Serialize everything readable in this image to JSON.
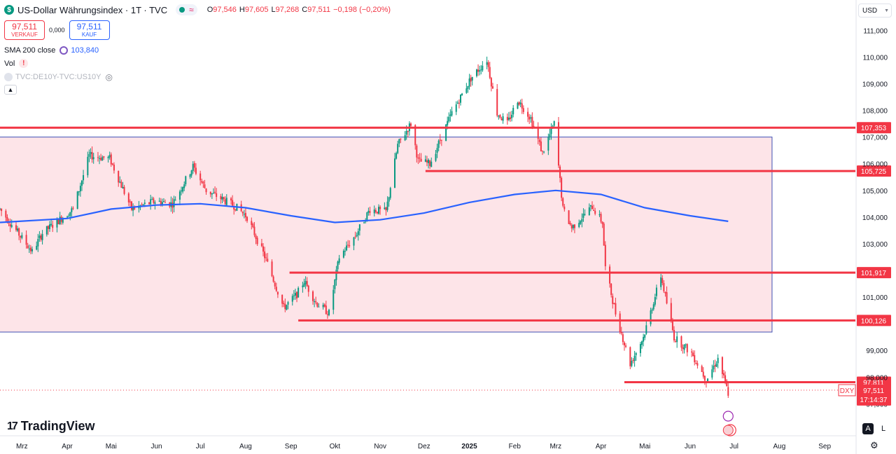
{
  "header": {
    "symbol_icon": "dollar-sign-icon",
    "title": "US-Dollar Währungsindex · 1T · TVC",
    "status_icon": "market-status-icon",
    "wave": "≈",
    "ohlc": [
      {
        "k": "O",
        "v": "97,546"
      },
      {
        "k": "H",
        "v": "97,605"
      },
      {
        "k": "L",
        "v": "97,268"
      },
      {
        "k": "C",
        "v": "97,511"
      },
      {
        "k": "",
        "v": "−0,198 (−0,20%)"
      }
    ]
  },
  "trade": {
    "sell_price": "97,511",
    "sell_label": "VERKAUF",
    "spread": "0,000",
    "buy_price": "97,511",
    "buy_label": "KAUF"
  },
  "indicators": {
    "sma_label": "SMA 200 close",
    "sma_value": "103,840",
    "vol_label": "Vol",
    "vol_warning": "!",
    "compare_label": "TVC:DE10Y-TVC:US10Y"
  },
  "currency": "USD",
  "brand": "TradingView",
  "scale_buttons": [
    "A",
    "L"
  ],
  "chart_data": {
    "type": "candlestick",
    "ylim": [
      96.8,
      111.35
    ],
    "y_ticks": [
      97,
      98,
      99,
      101,
      103,
      104,
      105,
      106,
      107,
      108,
      109,
      110,
      111
    ],
    "y_tick_labels": [
      "97,000",
      "98,000",
      "99,000",
      "101,000",
      "103,000",
      "104,000",
      "105,000",
      "106,000",
      "107,000",
      "108,000",
      "109,000",
      "110,000",
      "111,000"
    ],
    "x_labels": [
      "Mrz",
      "Apr",
      "Mai",
      "Jun",
      "Jul",
      "Aug",
      "Sep",
      "Okt",
      "Nov",
      "Dez",
      "2025",
      "Feb",
      "Mrz",
      "Apr",
      "Mai",
      "Jun",
      "Jul",
      "Aug",
      "Sep"
    ],
    "x_start": "2024-02-15",
    "x_end": "2025-09-22",
    "x_label_dates": [
      "2024-03-01",
      "2024-04-01",
      "2024-05-01",
      "2024-06-01",
      "2024-07-01",
      "2024-08-01",
      "2024-09-01",
      "2024-10-01",
      "2024-11-01",
      "2024-12-01",
      "2025-01-01",
      "2025-02-01",
      "2025-03-01",
      "2025-04-01",
      "2025-05-01",
      "2025-06-01",
      "2025-07-01",
      "2025-08-01",
      "2025-09-01"
    ],
    "price_path": [
      [
        "2024-02-15",
        104.3
      ],
      [
        "2024-03-08",
        102.7
      ],
      [
        "2024-03-15",
        103.4
      ],
      [
        "2024-04-05",
        104.3
      ],
      [
        "2024-04-16",
        106.3
      ],
      [
        "2024-04-30",
        106.2
      ],
      [
        "2024-05-15",
        104.3
      ],
      [
        "2024-05-31",
        104.6
      ],
      [
        "2024-06-12",
        104.5
      ],
      [
        "2024-06-26",
        105.9
      ],
      [
        "2024-07-05",
        105.0
      ],
      [
        "2024-07-25",
        104.4
      ],
      [
        "2024-08-02",
        104.0
      ],
      [
        "2024-08-15",
        102.4
      ],
      [
        "2024-08-27",
        100.6
      ],
      [
        "2024-09-05",
        101.1
      ],
      [
        "2024-09-10",
        101.6
      ],
      [
        "2024-09-18",
        100.8
      ],
      [
        "2024-09-27",
        100.4
      ],
      [
        "2024-10-04",
        102.5
      ],
      [
        "2024-10-15",
        103.3
      ],
      [
        "2024-10-25",
        104.3
      ],
      [
        "2024-11-05",
        104.2
      ],
      [
        "2024-11-13",
        106.7
      ],
      [
        "2024-11-22",
        107.5
      ],
      [
        "2024-11-27",
        106.1
      ],
      [
        "2024-12-05",
        106.0
      ],
      [
        "2024-12-20",
        107.9
      ],
      [
        "2025-01-02",
        109.2
      ],
      [
        "2025-01-13",
        109.9
      ],
      [
        "2025-01-20",
        107.9
      ],
      [
        "2025-01-27",
        107.5
      ],
      [
        "2025-02-03",
        108.4
      ],
      [
        "2025-02-12",
        107.7
      ],
      [
        "2025-02-20",
        106.4
      ],
      [
        "2025-02-28",
        107.5
      ],
      [
        "2025-03-06",
        104.3
      ],
      [
        "2025-03-12",
        103.6
      ],
      [
        "2025-03-26",
        104.4
      ],
      [
        "2025-04-02",
        103.8
      ],
      [
        "2025-04-04",
        102.1
      ],
      [
        "2025-04-11",
        100.4
      ],
      [
        "2025-04-21",
        98.5
      ],
      [
        "2025-04-30",
        99.5
      ],
      [
        "2025-05-12",
        101.8
      ],
      [
        "2025-05-21",
        99.5
      ],
      [
        "2025-06-02",
        98.9
      ],
      [
        "2025-06-12",
        97.9
      ],
      [
        "2025-06-20",
        98.7
      ],
      [
        "2025-06-27",
        97.4
      ]
    ],
    "sma_path": [
      [
        "2024-02-15",
        103.8
      ],
      [
        "2024-04-01",
        103.95
      ],
      [
        "2024-05-01",
        104.3
      ],
      [
        "2024-06-01",
        104.45
      ],
      [
        "2024-07-01",
        104.5
      ],
      [
        "2024-08-01",
        104.35
      ],
      [
        "2024-09-01",
        104.05
      ],
      [
        "2024-10-01",
        103.8
      ],
      [
        "2024-11-01",
        103.9
      ],
      [
        "2024-12-01",
        104.15
      ],
      [
        "2025-01-01",
        104.55
      ],
      [
        "2025-02-01",
        104.85
      ],
      [
        "2025-03-01",
        105.0
      ],
      [
        "2025-04-01",
        104.85
      ],
      [
        "2025-05-01",
        104.35
      ],
      [
        "2025-06-01",
        104.05
      ],
      [
        "2025-06-27",
        103.84
      ]
    ],
    "rectangle": {
      "x_from": "2024-02-15",
      "x_to": "2025-07-27",
      "y_from": 99.69,
      "y_to": 107.0
    },
    "levels": [
      {
        "value": 107.353,
        "label": "107,353",
        "from": "2024-02-15"
      },
      {
        "value": 105.725,
        "label": "105,725",
        "from": "2024-12-02"
      },
      {
        "value": 101.917,
        "label": "101,917",
        "from": "2024-08-31"
      },
      {
        "value": 100.126,
        "label": "100,126",
        "from": "2024-09-06"
      },
      {
        "value": 97.811,
        "label": "97,811",
        "from": "2025-04-17"
      }
    ],
    "last_price": {
      "value": 97.511,
      "symbol": "DXY",
      "label": "97,511",
      "countdown": "17:14:37"
    },
    "colors": {
      "up": "#089981",
      "down": "#f23645",
      "sma": "#2962ff",
      "levels": "#f23645",
      "rect_fill": "#fde4e8",
      "rect_stroke": "#3f51b5"
    }
  }
}
